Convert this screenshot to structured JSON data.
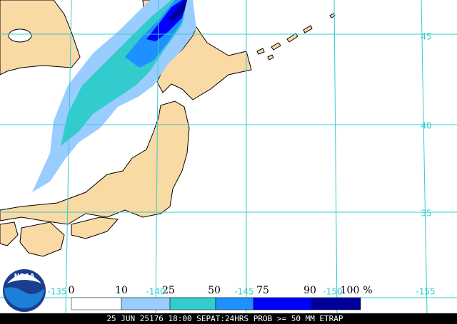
{
  "map": {
    "lat_labels": [
      "45",
      "40",
      "35"
    ],
    "lon_labels": [
      "-135",
      "-140",
      "-145",
      "-150",
      "-155"
    ],
    "legend": {
      "labels": [
        "0",
        "10",
        "25",
        "50",
        "75",
        "90",
        "100"
      ],
      "unit": "%",
      "colors": [
        "#ffffff",
        "#99ccff",
        "#33cccc",
        "#1e90ff",
        "#0000ff",
        "#000099"
      ]
    },
    "logo": "NOAA",
    "caption": "25 JUN 25176 18:00 SEPAT:24HRS PROB >= 50 MM ETRAP"
  }
}
